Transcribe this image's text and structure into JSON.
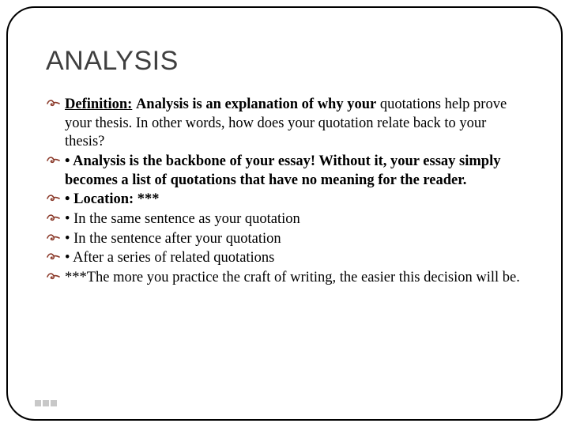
{
  "slide": {
    "title": "ANALYSIS",
    "bullets": [
      {
        "segments": [
          {
            "text": "Definition:",
            "style": "bold underline"
          },
          {
            "text": " ",
            "style": ""
          },
          {
            "text": "Analysis is an explanation of why your",
            "style": "bold"
          },
          {
            "text": " quotations help prove your thesis. In other words, how does your quotation relate back to your thesis?",
            "style": ""
          }
        ]
      },
      {
        "segments": [
          {
            "text": "• Analysis is the backbone of your essay! Without it, your essay simply becomes a list of quotations that have no meaning for the reader.",
            "style": "bold"
          }
        ]
      },
      {
        "segments": [
          {
            "text": "• Location: ***",
            "style": "bold"
          }
        ]
      },
      {
        "segments": [
          {
            "text": "• In the same sentence as your quotation",
            "style": ""
          }
        ]
      },
      {
        "segments": [
          {
            "text": "• In the sentence after your quotation",
            "style": ""
          }
        ]
      },
      {
        "segments": [
          {
            "text": "• After a series of related quotations",
            "style": ""
          }
        ]
      },
      {
        "segments": [
          {
            "text": "***The more you practice the craft of writing, the easier this decision will be.",
            "style": ""
          }
        ]
      }
    ],
    "bullet_glyph": "✑",
    "styling": {
      "title_color": "#3f3f3f",
      "title_fontsize": 34,
      "body_fontsize": 18.5,
      "bullet_color": "#8b3a2a",
      "border_color": "#000000",
      "border_radius": 36,
      "background": "#ffffff"
    }
  }
}
